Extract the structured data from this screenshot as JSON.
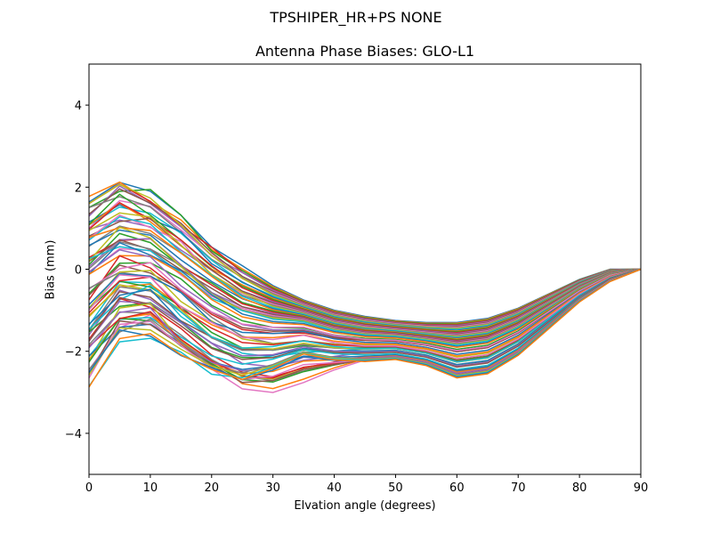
{
  "figure": {
    "suptitle": "TPSHIPER_HR+PS  NONE"
  },
  "chart_data": {
    "type": "line",
    "title": "Antenna Phase Biases: GLO-L1",
    "suptitle": "TPSHIPER_HR+PS  NONE",
    "xlabel": "Elvation angle (degrees)",
    "ylabel": "Bias (mm)",
    "xlim": [
      0,
      90
    ],
    "ylim": [
      -5,
      5
    ],
    "xticks": [
      0,
      10,
      20,
      30,
      40,
      50,
      60,
      70,
      80,
      90
    ],
    "yticks": [
      -4,
      -2,
      0,
      2,
      4
    ],
    "grid": false,
    "legend": "none",
    "x": [
      0,
      5,
      10,
      15,
      20,
      25,
      30,
      35,
      40,
      45,
      50,
      55,
      60,
      65,
      70,
      75,
      80,
      85,
      90
    ],
    "envelope_top": [
      1.8,
      2.2,
      1.9,
      1.3,
      0.6,
      0.05,
      -0.4,
      -0.75,
      -1.0,
      -1.15,
      -1.25,
      -1.3,
      -1.3,
      -1.2,
      -0.95,
      -0.6,
      -0.25,
      0.0,
      0.0
    ],
    "envelope_bottom": [
      -2.65,
      -1.7,
      -1.6,
      -2.05,
      -2.5,
      -2.65,
      -2.4,
      -2.05,
      -2.2,
      -2.25,
      -2.2,
      -2.35,
      -2.65,
      -2.55,
      -2.1,
      -1.45,
      -0.8,
      -0.3,
      0.0
    ],
    "envelope_deep": [
      -2.2,
      -1.2,
      -1.1,
      -1.9,
      -2.5,
      -3.0,
      -3.2,
      -2.95,
      -2.55,
      -2.25,
      -2.2,
      -2.3,
      -2.6,
      -2.5,
      -2.05,
      -1.4,
      -0.75,
      -0.25,
      0.0
    ],
    "series_count": 72,
    "colors": [
      "#1f77b4",
      "#ff7f0e",
      "#2ca02c",
      "#d62728",
      "#9467bd",
      "#8c564b",
      "#e377c2",
      "#7f7f7f",
      "#bcbd22",
      "#17becf"
    ],
    "note": "Many overlapping series (~70); all converge to 0 at 90 degrees"
  }
}
